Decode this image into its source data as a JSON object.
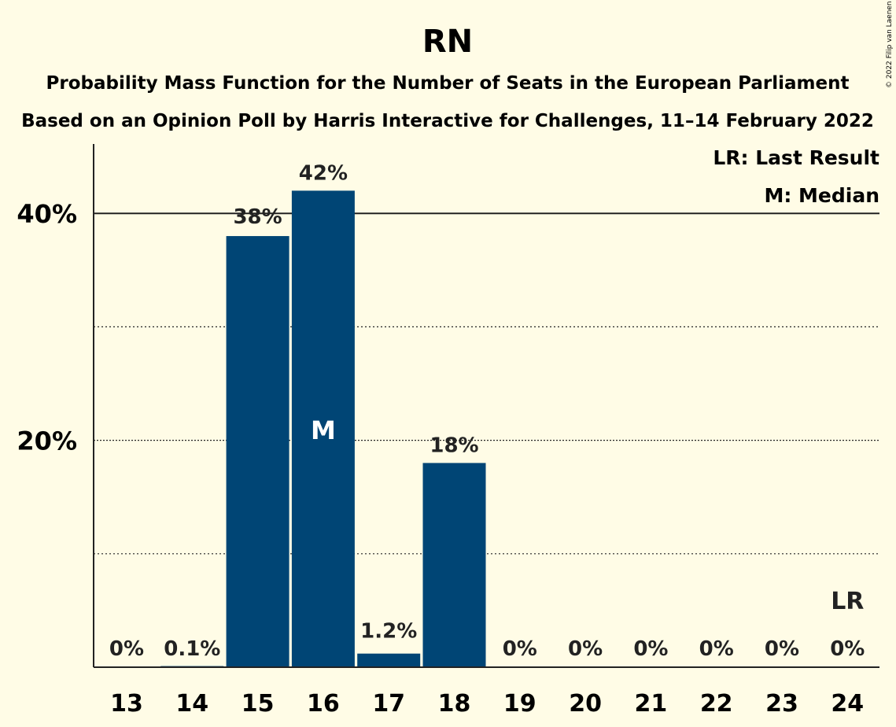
{
  "chart_data": {
    "type": "bar",
    "title": "RN",
    "subtitles": [
      "Probability Mass Function for the Number of Seats in the European Parliament",
      "Based on an Opinion Poll by Harris Interactive for Challenges, 11–14 February 2022"
    ],
    "categories": [
      "13",
      "14",
      "15",
      "16",
      "17",
      "18",
      "19",
      "20",
      "21",
      "22",
      "23",
      "24"
    ],
    "values": [
      0,
      0.1,
      38,
      42,
      1.2,
      18,
      0,
      0,
      0,
      0,
      0,
      0
    ],
    "data_labels": [
      "0%",
      "0.1%",
      "38%",
      "42%",
      "1.2%",
      "18%",
      "0%",
      "0%",
      "0%",
      "0%",
      "0%",
      "0%"
    ],
    "ylim": [
      0,
      46
    ],
    "yticks": [
      20,
      40
    ],
    "ytick_labels": [
      "20%",
      "40%"
    ],
    "minor_gridlines": [
      10,
      30
    ],
    "bar_color": "#004575",
    "median_category": "16",
    "median_marker": "M",
    "last_result_category": "24",
    "last_result_marker": "LR",
    "legend": [
      "LR: Last Result",
      "M: Median"
    ],
    "legend_position": "top-right",
    "copyright": "© 2022 Filip van Laenen"
  }
}
